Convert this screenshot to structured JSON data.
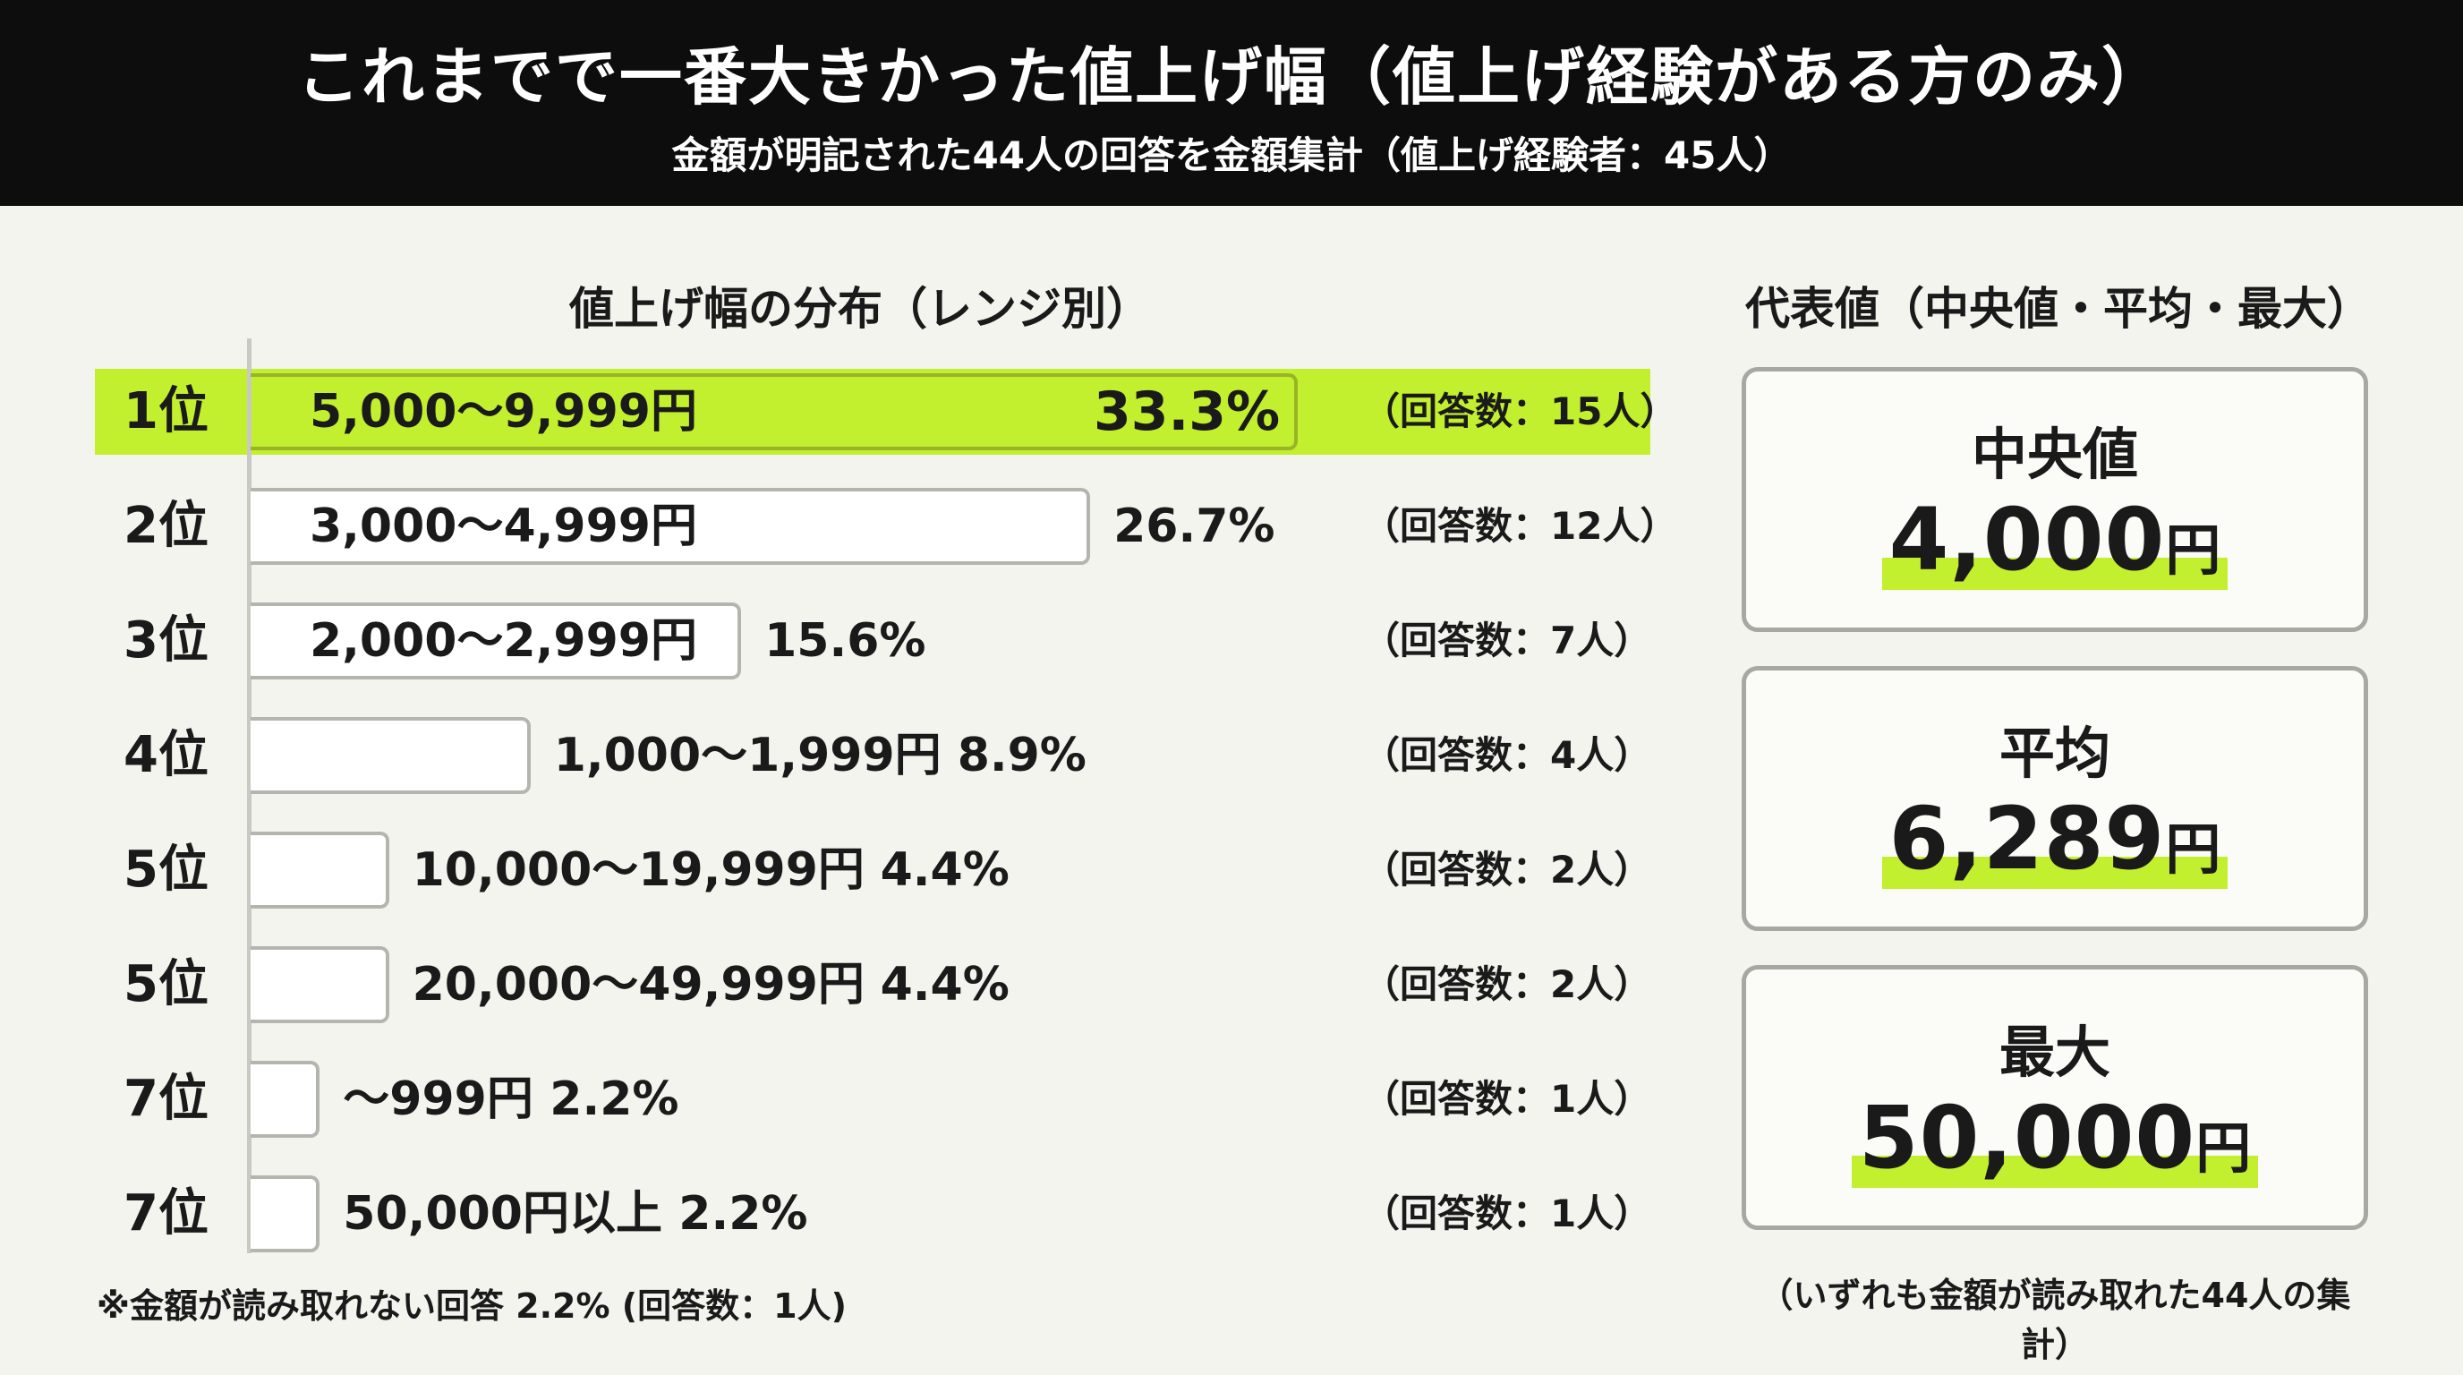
{
  "header": {
    "title": "これまでで一番大きかった値上げ幅（値上げ経験がある方のみ）",
    "subtitle": "金額が明記された44人の回答を金額集計（値上げ経験者：45人）"
  },
  "colors": {
    "highlight": "#c2ef2e",
    "header_bg": "#0d0d0d",
    "bar_border": "#b5b5b0"
  },
  "chart_data": {
    "type": "bar",
    "title": "値上げ幅の分布（レンジ別）",
    "orientation": "horizontal",
    "xlim": [
      0,
      33.3
    ],
    "grid": false,
    "legend": "none",
    "rows": [
      {
        "rank": "1位",
        "label": "5,000〜9,999円",
        "value": 33.3,
        "pct": "33.3%",
        "count": "（回答数：15人）",
        "highlight": true
      },
      {
        "rank": "2位",
        "label": "3,000〜4,999円",
        "value": 26.7,
        "pct": "26.7%",
        "count": "（回答数：12人）"
      },
      {
        "rank": "3位",
        "label": "2,000〜2,999円",
        "value": 15.6,
        "pct": "15.6%",
        "count": "（回答数：7人）"
      },
      {
        "rank": "4位",
        "label": "1,000〜1,999円",
        "value": 8.9,
        "pct": "8.9%",
        "count": "（回答数：4人）"
      },
      {
        "rank": "5位",
        "label": "10,000〜19,999円",
        "value": 4.4,
        "pct": "4.4%",
        "count": "（回答数：2人）"
      },
      {
        "rank": "5位",
        "label": "20,000〜49,999円",
        "value": 4.4,
        "pct": "4.4%",
        "count": "（回答数：2人）"
      },
      {
        "rank": "7位",
        "label": "〜999円",
        "value": 2.2,
        "pct": "2.2%",
        "count": "（回答数：1人）"
      },
      {
        "rank": "7位",
        "label": "50,000円以上",
        "value": 2.2,
        "pct": "2.2%",
        "count": "（回答数：1人）"
      }
    ]
  },
  "footnote": "※金額が読み取れない回答 2.2% (回答数：1人)",
  "stats": {
    "title": "代表値（中央値・平均・最大）",
    "cards": [
      {
        "label": "中央値",
        "value": "4,000",
        "unit": "円"
      },
      {
        "label": "平均",
        "value": "6,289",
        "unit": "円"
      },
      {
        "label": "最大",
        "value": "50,000",
        "unit": "円"
      }
    ],
    "note": "（いずれも金額が読み取れた44人の集計）"
  }
}
